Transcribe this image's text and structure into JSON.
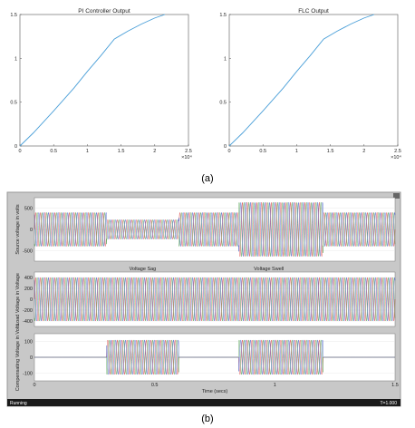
{
  "panels": {
    "a_label": "(a)",
    "b_label": "(b)"
  },
  "chart_data": [
    {
      "type": "line",
      "title": "PI Controller Output",
      "x_exponent": "×10⁴",
      "x_ticks": [
        "0",
        "0.5",
        "1",
        "1.5",
        "2",
        "2.5"
      ],
      "y_ticks": [
        "0",
        "0.5",
        "1",
        "1.5"
      ],
      "xlim": [
        0,
        2.5
      ],
      "ylim": [
        0,
        1.5
      ],
      "color": "#4a9fd8",
      "x": [
        0,
        0.2,
        0.5,
        0.8,
        1.0,
        1.2,
        1.4,
        1.6,
        1.8,
        2.0,
        2.15
      ],
      "y": [
        0,
        0.15,
        0.4,
        0.66,
        0.85,
        1.03,
        1.22,
        1.31,
        1.39,
        1.46,
        1.5
      ]
    },
    {
      "type": "line",
      "title": "FLC Output",
      "x_exponent": "×10⁴",
      "x_ticks": [
        "0",
        "0.5",
        "1",
        "1.5",
        "2",
        "2.5"
      ],
      "y_ticks": [
        "0",
        "0.5",
        "1",
        "1.5"
      ],
      "xlim": [
        0,
        2.5
      ],
      "ylim": [
        0,
        1.5
      ],
      "color": "#4a9fd8",
      "x": [
        0,
        0.2,
        0.5,
        0.8,
        1.0,
        1.2,
        1.4,
        1.6,
        1.8,
        2.0,
        2.15
      ],
      "y": [
        0,
        0.15,
        0.4,
        0.66,
        0.85,
        1.03,
        1.22,
        1.31,
        1.39,
        1.46,
        1.5
      ]
    },
    {
      "type": "line",
      "ylabel": "Source voltage in volts",
      "y_ticks": [
        "500",
        "0",
        "-500"
      ],
      "y_tick_values": [
        500,
        0,
        -500
      ],
      "ylim": [
        -750,
        750
      ],
      "xlim": [
        0,
        1.5
      ],
      "segments": [
        {
          "t": [
            0,
            0.3
          ],
          "amp": 400
        },
        {
          "t": [
            0.3,
            0.6
          ],
          "amp": 230
        },
        {
          "t": [
            0.6,
            0.85
          ],
          "amp": 400
        },
        {
          "t": [
            0.85,
            1.2
          ],
          "amp": 640
        },
        {
          "t": [
            1.2,
            1.5
          ],
          "amp": 400
        }
      ],
      "phase_colors": [
        "#d62020",
        "#2f8f2f",
        "#1f3fbf"
      ]
    },
    {
      "type": "line",
      "ylabel": "Load Voltage in Voltage",
      "annotations": [
        "Voltage Sag",
        "Voltage Swell"
      ],
      "y_ticks": [
        "400",
        "200",
        "0",
        "-200",
        "-400"
      ],
      "y_tick_values": [
        400,
        200,
        0,
        -200,
        -400
      ],
      "ylim": [
        -500,
        500
      ],
      "xlim": [
        0,
        1.5
      ],
      "segments": [
        {
          "t": [
            0,
            1.5
          ],
          "amp": 400
        }
      ],
      "phase_colors": [
        "#d62020",
        "#2f8f2f",
        "#1f3fbf"
      ]
    },
    {
      "type": "line",
      "ylabel": "Compensating Voltage in Volts",
      "xlabel": "Time (secs)",
      "x_ticks": [
        "0",
        "0.5",
        "1",
        "1.5"
      ],
      "y_ticks": [
        "100",
        "0",
        "-100"
      ],
      "y_tick_values": [
        100,
        0,
        -100
      ],
      "ylim": [
        -150,
        150
      ],
      "xlim": [
        0,
        1.5
      ],
      "segments": [
        {
          "t": [
            0,
            0.3
          ],
          "amp": 0
        },
        {
          "t": [
            0.3,
            0.6
          ],
          "amp": 110
        },
        {
          "t": [
            0.6,
            0.85
          ],
          "amp": 0
        },
        {
          "t": [
            0.85,
            1.2
          ],
          "amp": 110
        },
        {
          "t": [
            1.2,
            1.5
          ],
          "amp": 0
        }
      ],
      "phase_colors": [
        "#d62020",
        "#2f8f2f",
        "#1f3fbf"
      ]
    }
  ],
  "statusbar": {
    "state": "Running",
    "time": "T=1.000"
  }
}
